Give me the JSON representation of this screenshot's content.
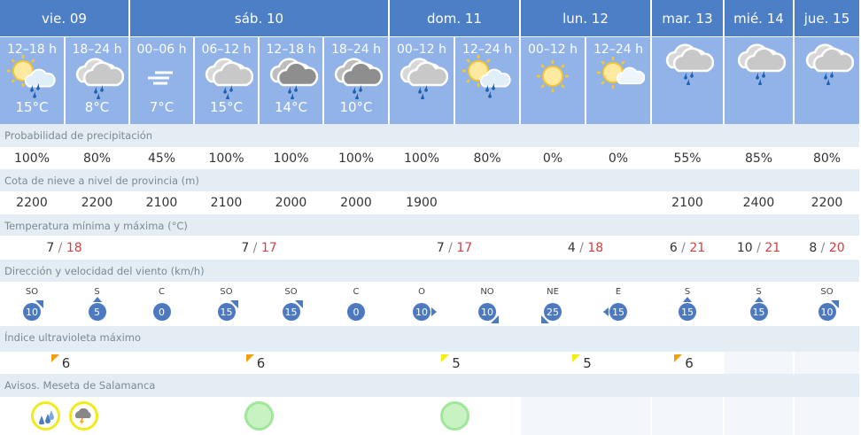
{
  "days": [
    {
      "label": "vie. 09",
      "span": 2
    },
    {
      "label": "sáb. 10",
      "span": 4
    },
    {
      "label": "dom. 11",
      "span": 2
    },
    {
      "label": "lun. 12",
      "span": 2
    },
    {
      "label": "mar. 13",
      "span": 1
    },
    {
      "label": "mié. 14",
      "span": 1
    },
    {
      "label": "jue. 15",
      "span": 1
    }
  ],
  "periods": [
    {
      "label": "12–18 h",
      "icon": "sun-cloud-rain",
      "temp": "15°C"
    },
    {
      "label": "18–24 h",
      "icon": "cloud-rain",
      "temp": "8°C"
    },
    {
      "label": "00–06 h",
      "icon": "fog",
      "temp": "7°C"
    },
    {
      "label": "06–12 h",
      "icon": "cloud-rain",
      "temp": "15°C"
    },
    {
      "label": "12–18 h",
      "icon": "cloud-rain-dark",
      "temp": "14°C"
    },
    {
      "label": "18–24 h",
      "icon": "cloud-rain-dark",
      "temp": "10°C"
    },
    {
      "label": "00–12 h",
      "icon": "cloud-rain",
      "temp": ""
    },
    {
      "label": "12–24 h",
      "icon": "sun-cloud-rain",
      "temp": ""
    },
    {
      "label": "00–12 h",
      "icon": "sun",
      "temp": ""
    },
    {
      "label": "12–24 h",
      "icon": "sun-cloud",
      "temp": ""
    },
    {
      "label": "",
      "icon": "cloud-rain",
      "temp": ""
    },
    {
      "label": "",
      "icon": "cloud-rain",
      "temp": ""
    },
    {
      "label": "",
      "icon": "cloud-rain",
      "temp": ""
    }
  ],
  "labels": {
    "precip": "Probabilidad de precipitación",
    "snow": "Cota de nieve a nivel de provincia (m)",
    "temp": "Temperatura mínima y máxima (°C)",
    "wind": "Dirección y velocidad del viento (km/h)",
    "uv": "Índice ultravioleta máximo",
    "alerts": "Avisos. Meseta de Salamanca"
  },
  "precip": [
    "100%",
    "80%",
    "45%",
    "100%",
    "100%",
    "100%",
    "100%",
    "80%",
    "0%",
    "0%",
    "55%",
    "85%",
    "80%"
  ],
  "snow": [
    "2200",
    "2200",
    "2100",
    "2100",
    "2000",
    "2000",
    "1900",
    "",
    "",
    "",
    "2100",
    "2400",
    "2200"
  ],
  "temps": [
    {
      "min": "7",
      "max": "18",
      "span": 2
    },
    {
      "min": "7",
      "max": "17",
      "span": 4
    },
    {
      "min": "7",
      "max": "17",
      "span": 2
    },
    {
      "min": "4",
      "max": "18",
      "span": 2
    },
    {
      "min": "6",
      "max": "21",
      "span": 1
    },
    {
      "min": "10",
      "max": "21",
      "span": 1
    },
    {
      "min": "8",
      "max": "20",
      "span": 1
    }
  ],
  "wind": [
    {
      "dir": "SO",
      "speed": "10"
    },
    {
      "dir": "S",
      "speed": "5"
    },
    {
      "dir": "C",
      "speed": "0"
    },
    {
      "dir": "SO",
      "speed": "15"
    },
    {
      "dir": "SO",
      "speed": "15"
    },
    {
      "dir": "C",
      "speed": "0"
    },
    {
      "dir": "O",
      "speed": "10"
    },
    {
      "dir": "NO",
      "speed": "10"
    },
    {
      "dir": "NE",
      "speed": "25"
    },
    {
      "dir": "E",
      "speed": "15"
    },
    {
      "dir": "S",
      "speed": "15"
    },
    {
      "dir": "S",
      "speed": "15"
    },
    {
      "dir": "SO",
      "speed": "10"
    }
  ],
  "uv": [
    {
      "value": "6",
      "color": "#f0a010",
      "span": 2
    },
    {
      "value": "6",
      "color": "#f0a010",
      "span": 4
    },
    {
      "value": "5",
      "color": "#f2ee10",
      "span": 2
    },
    {
      "value": "5",
      "color": "#f2ee10",
      "span": 2
    },
    {
      "value": "6",
      "color": "#f0a010",
      "span": 1
    },
    {
      "value": "",
      "span": 1
    },
    {
      "value": "",
      "span": 1
    }
  ],
  "alerts": [
    {
      "items": [
        "yellow-rain",
        "yellow-storm"
      ],
      "span": 2
    },
    {
      "items": [
        "green"
      ],
      "span": 4
    },
    {
      "items": [
        "green"
      ],
      "span": 2
    },
    {
      "items": [],
      "span": 2
    },
    {
      "items": [],
      "span": 1
    },
    {
      "items": [],
      "span": 1
    },
    {
      "items": [],
      "span": 1
    }
  ],
  "colors": {
    "header": "#4d7fc6",
    "subheader": "#91b3e8",
    "wind_badge": "#4c79c0",
    "temp_max": "#d64040"
  }
}
